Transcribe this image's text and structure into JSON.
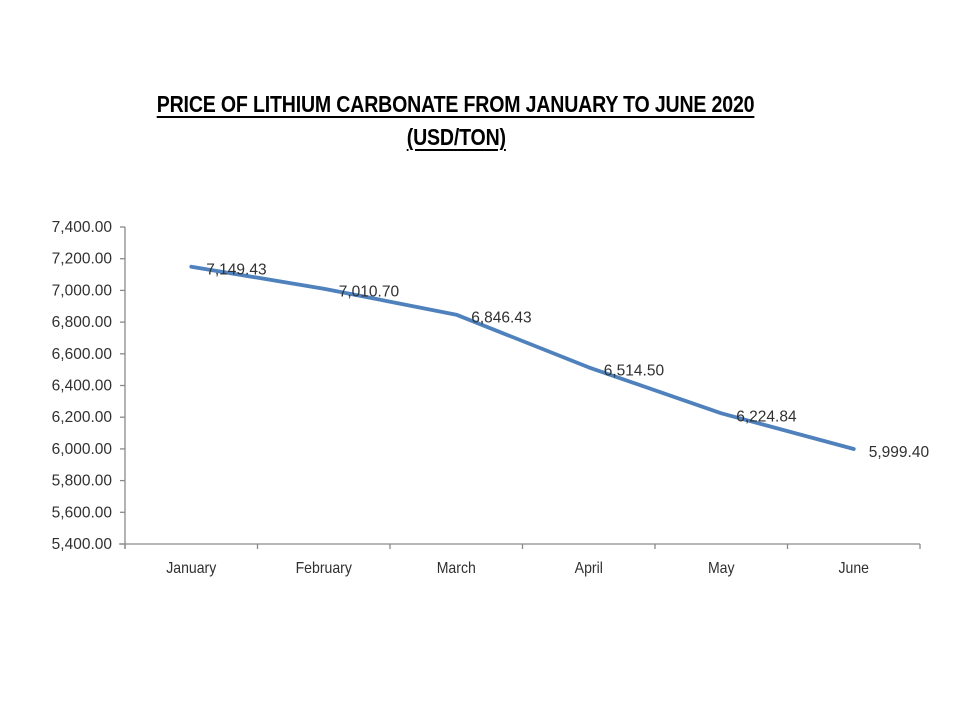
{
  "title": {
    "line1": "PRICE OF LITHIUM CARBONATE FROM JANUARY TO JUNE 2020",
    "line2": "(USD/TON)"
  },
  "chart_data": {
    "type": "line",
    "title": "PRICE OF LITHIUM CARBONATE FROM JANUARY TO JUNE 2020 (USD/TON)",
    "categories": [
      "January",
      "February",
      "March",
      "April",
      "May",
      "June"
    ],
    "series": [
      {
        "name": "Price of lithium carbonate (USD/ton)",
        "values": [
          7149.43,
          7010.7,
          6846.43,
          6514.5,
          6224.84,
          5999.4
        ],
        "data_labels": [
          "7,149.43",
          "7,010.70",
          "6,846.43",
          "6,514.50",
          "6,224.84",
          "5,999.40"
        ]
      }
    ],
    "xlabel": "",
    "ylabel": "",
    "ylim": [
      5400,
      7400
    ],
    "ytick_step": 200,
    "ytick_labels": [
      "5,400.00",
      "5,600.00",
      "5,800.00",
      "6,000.00",
      "6,200.00",
      "6,400.00",
      "6,600.00",
      "6,800.00",
      "7,000.00",
      "7,200.00",
      "7,400.00"
    ],
    "grid": false,
    "legend_position": "none",
    "colors": {
      "line": "#4F81BD",
      "axis": "#8a8a8a",
      "label_text": "#303030",
      "background": "#ffffff"
    }
  }
}
